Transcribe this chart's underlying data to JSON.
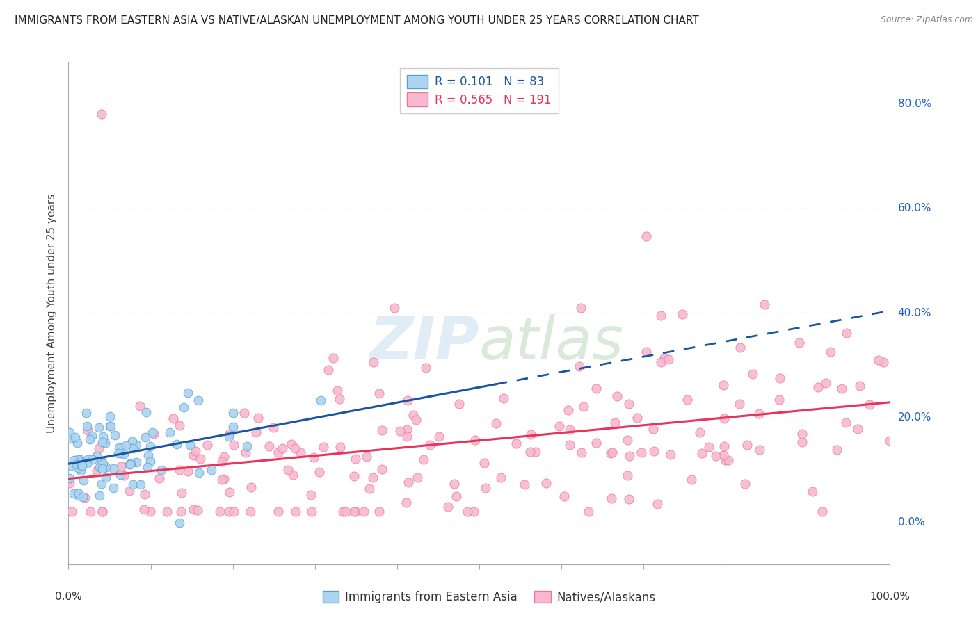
{
  "title": "IMMIGRANTS FROM EASTERN ASIA VS NATIVE/ALASKAN UNEMPLOYMENT AMONG YOUTH UNDER 25 YEARS CORRELATION CHART",
  "source": "Source: ZipAtlas.com",
  "ylabel": "Unemployment Among Youth under 25 years",
  "series1": {
    "label": "Immigrants from Eastern Asia",
    "R": 0.101,
    "N": 83,
    "color_scatter": "#aad4f0",
    "color_edge": "#5a9fd4",
    "color_line": "#1a56a0"
  },
  "series2": {
    "label": "Natives/Alaskans",
    "R": 0.565,
    "N": 191,
    "color_scatter": "#f9b8cf",
    "color_edge": "#e87aa0",
    "color_line": "#e8335a"
  },
  "xlim": [
    0,
    100
  ],
  "ylim": [
    -8,
    88
  ],
  "yticks": [
    0,
    20,
    40,
    60,
    80
  ],
  "ytick_labels": [
    "0.0%",
    "20.0%",
    "40.0%",
    "60.0%",
    "80.0%"
  ],
  "background_color": "#ffffff",
  "grid_color": "#d0d0d0",
  "title_fontsize": 11,
  "axis_label_fontsize": 11,
  "tick_label_fontsize": 11,
  "legend_fontsize": 12
}
